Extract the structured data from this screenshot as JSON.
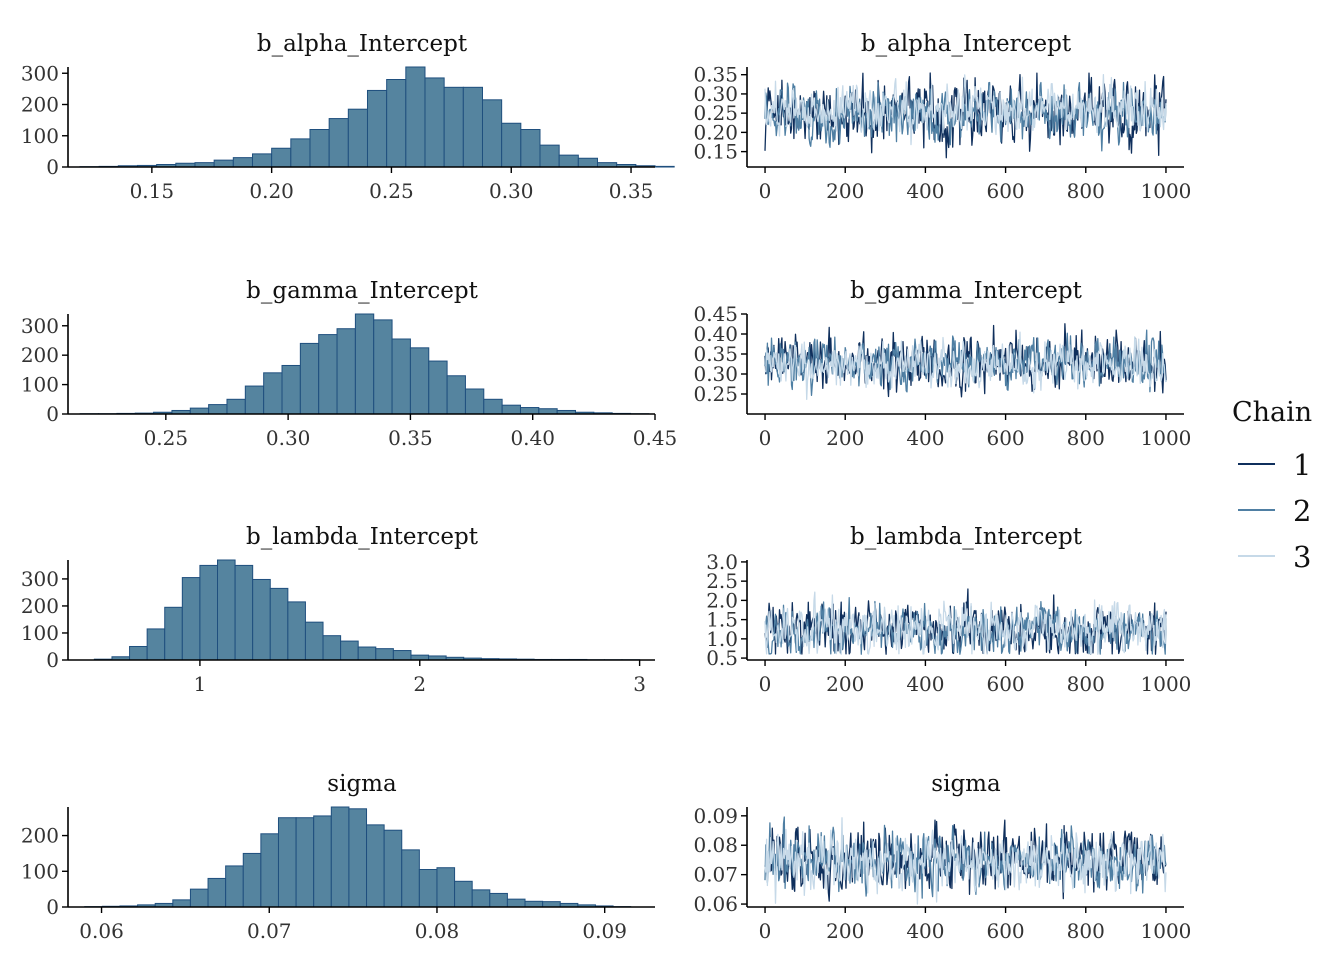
{
  "chart_data": [
    {
      "type": "bar",
      "title": "b_alpha_Intercept",
      "xlim": [
        0.115,
        0.36
      ],
      "ylim": [
        0,
        320
      ],
      "x_ticks": [
        0.15,
        0.2,
        0.25,
        0.3,
        0.35
      ],
      "x_tick_labels": [
        "0.15",
        "0.20",
        "0.25",
        "0.30",
        "0.35"
      ],
      "y_ticks": [
        0,
        100,
        200,
        300
      ],
      "y_tick_labels": [
        "0",
        "100",
        "200",
        "300"
      ],
      "bin_start": 0.12,
      "bin_width": 0.008,
      "values": [
        1,
        2,
        4,
        5,
        8,
        12,
        14,
        22,
        30,
        42,
        60,
        90,
        120,
        155,
        185,
        245,
        280,
        320,
        285,
        255,
        255,
        215,
        140,
        120,
        70,
        38,
        28,
        14,
        8,
        4,
        2
      ]
    },
    {
      "type": "line",
      "title": "b_alpha_Intercept",
      "xlim": [
        -45,
        1045
      ],
      "ylim": [
        0.11,
        0.37
      ],
      "x_ticks": [
        0,
        200,
        400,
        600,
        800,
        1000
      ],
      "x_tick_labels": [
        "0",
        "200",
        "400",
        "600",
        "800",
        "1000"
      ],
      "y_ticks": [
        0.15,
        0.2,
        0.25,
        0.3,
        0.35
      ],
      "y_tick_labels": [
        "0.15",
        "0.20",
        "0.25",
        "0.30",
        "0.35"
      ],
      "series": [
        {
          "name": "1",
          "mean": 0.25,
          "sd": 0.04,
          "min": 0.13,
          "max": 0.355
        },
        {
          "name": "2",
          "mean": 0.25,
          "sd": 0.033,
          "min": 0.15,
          "max": 0.33
        },
        {
          "name": "3",
          "mean": 0.26,
          "sd": 0.03,
          "min": 0.15,
          "max": 0.35
        }
      ]
    },
    {
      "type": "bar",
      "title": "b_gamma_Intercept",
      "xlim": [
        0.21,
        0.45
      ],
      "ylim": [
        0,
        340
      ],
      "x_ticks": [
        0.25,
        0.3,
        0.35,
        0.4,
        0.45
      ],
      "x_tick_labels": [
        "0.25",
        "0.30",
        "0.35",
        "0.40",
        "0.45"
      ],
      "y_ticks": [
        0,
        100,
        200,
        300
      ],
      "y_tick_labels": [
        "0",
        "100",
        "200",
        "300"
      ],
      "bin_start": 0.215,
      "bin_width": 0.0075,
      "values": [
        1,
        1,
        2,
        3,
        6,
        12,
        20,
        32,
        50,
        95,
        140,
        165,
        240,
        270,
        290,
        340,
        320,
        255,
        225,
        180,
        130,
        85,
        50,
        30,
        22,
        18,
        12,
        6,
        4,
        2,
        1
      ]
    },
    {
      "type": "line",
      "title": "b_gamma_Intercept",
      "xlim": [
        -45,
        1045
      ],
      "ylim": [
        0.2,
        0.45
      ],
      "x_ticks": [
        0,
        200,
        400,
        600,
        800,
        1000
      ],
      "x_tick_labels": [
        "0",
        "200",
        "400",
        "600",
        "800",
        "1000"
      ],
      "y_ticks": [
        0.25,
        0.3,
        0.35,
        0.4,
        0.45
      ],
      "y_tick_labels": [
        "0.25",
        "0.30",
        "0.35",
        "0.40",
        "0.45"
      ],
      "series": [
        {
          "name": "1",
          "mean": 0.33,
          "sd": 0.032,
          "min": 0.24,
          "max": 0.44
        },
        {
          "name": "2",
          "mean": 0.325,
          "sd": 0.028,
          "min": 0.24,
          "max": 0.41
        },
        {
          "name": "3",
          "mean": 0.32,
          "sd": 0.025,
          "min": 0.22,
          "max": 0.42
        }
      ]
    },
    {
      "type": "bar",
      "title": "b_lambda_Intercept",
      "xlim": [
        0.4,
        3.07
      ],
      "ylim": [
        0,
        370
      ],
      "x_ticks": [
        1,
        2,
        3
      ],
      "x_tick_labels": [
        "1",
        "2",
        "3"
      ],
      "y_ticks": [
        0,
        100,
        200,
        300
      ],
      "y_tick_labels": [
        "0",
        "100",
        "200",
        "300"
      ],
      "bin_start": 0.52,
      "bin_width": 0.08,
      "values": [
        3,
        12,
        50,
        115,
        195,
        305,
        350,
        370,
        350,
        298,
        265,
        215,
        140,
        90,
        70,
        48,
        42,
        35,
        18,
        15,
        10,
        7,
        5,
        4,
        3,
        2,
        2,
        2,
        1,
        1,
        1
      ]
    },
    {
      "type": "line",
      "title": "b_lambda_Intercept",
      "xlim": [
        -45,
        1045
      ],
      "ylim": [
        0.45,
        3.05
      ],
      "x_ticks": [
        0,
        200,
        400,
        600,
        800,
        1000
      ],
      "x_tick_labels": [
        "0",
        "200",
        "400",
        "600",
        "800",
        "1000"
      ],
      "y_ticks": [
        0.5,
        1.0,
        1.5,
        2.0,
        2.5,
        3.0
      ],
      "y_tick_labels": [
        "0.5",
        "1.0",
        "1.5",
        "2.0",
        "2.5",
        "3.0"
      ],
      "series": [
        {
          "name": "1",
          "mean": 1.25,
          "sd": 0.33,
          "min": 0.6,
          "max": 2.6
        },
        {
          "name": "2",
          "mean": 1.2,
          "sd": 0.3,
          "min": 0.6,
          "max": 2.3
        },
        {
          "name": "3",
          "mean": 1.25,
          "sd": 0.3,
          "min": 0.6,
          "max": 2.9
        }
      ]
    },
    {
      "type": "bar",
      "title": "sigma",
      "xlim": [
        0.058,
        0.093
      ],
      "ylim": [
        0,
        280
      ],
      "x_ticks": [
        0.06,
        0.07,
        0.08,
        0.09
      ],
      "x_tick_labels": [
        "0.06",
        "0.07",
        "0.08",
        "0.09"
      ],
      "y_ticks": [
        0,
        100,
        200
      ],
      "y_tick_labels": [
        "0",
        "100",
        "200"
      ],
      "bin_start": 0.059,
      "bin_width": 0.00105,
      "values": [
        1,
        2,
        3,
        6,
        10,
        20,
        50,
        80,
        115,
        150,
        205,
        250,
        250,
        255,
        280,
        275,
        230,
        215,
        160,
        105,
        110,
        72,
        48,
        38,
        22,
        16,
        15,
        10,
        6,
        3,
        1
      ]
    },
    {
      "type": "line",
      "title": "sigma",
      "xlim": [
        -45,
        1045
      ],
      "ylim": [
        0.059,
        0.093
      ],
      "x_ticks": [
        0,
        200,
        400,
        600,
        800,
        1000
      ],
      "x_tick_labels": [
        "0",
        "200",
        "400",
        "600",
        "800",
        "1000"
      ],
      "y_ticks": [
        0.06,
        0.07,
        0.08,
        0.09
      ],
      "y_tick_labels": [
        "0.06",
        "0.07",
        "0.08",
        "0.09"
      ],
      "series": [
        {
          "name": "1",
          "mean": 0.075,
          "sd": 0.005,
          "min": 0.061,
          "max": 0.091
        },
        {
          "name": "2",
          "mean": 0.0745,
          "sd": 0.0048,
          "min": 0.062,
          "max": 0.09
        },
        {
          "name": "3",
          "mean": 0.0745,
          "sd": 0.0045,
          "min": 0.06,
          "max": 0.091
        }
      ]
    }
  ],
  "legend": {
    "title": "Chain",
    "placement": "right",
    "items": [
      {
        "label": "1",
        "color": "#0f2f5c"
      },
      {
        "label": "2",
        "color": "#4f7fa3"
      },
      {
        "label": "3",
        "color": "#c6d9e8"
      }
    ]
  },
  "colors": {
    "bar_fill": "#55849f",
    "bar_outline": "#1f4f7e",
    "axis": "#000000"
  }
}
